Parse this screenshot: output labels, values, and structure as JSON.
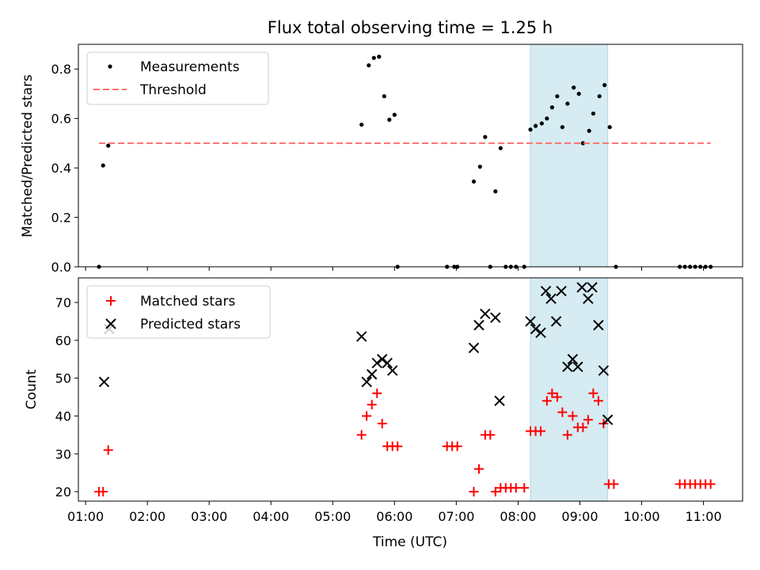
{
  "chart_data": [
    {
      "type": "scatter",
      "title": "Flux total observing time = 1.25 h",
      "ylabel": "Matched/Predicted stars",
      "xlim": [
        "00:53",
        "11:38"
      ],
      "ylim": [
        0,
        0.9
      ],
      "yticks": [
        "0.0",
        "0.2",
        "0.4",
        "0.6",
        "0.8"
      ],
      "grid": false,
      "legend": "upper-left",
      "highlight_span": {
        "start": "08:12",
        "end": "09:27",
        "color": "#add8e6"
      },
      "series": [
        {
          "name": "Measurements",
          "marker": "dot",
          "color": "#000000",
          "points": [
            [
              "01:13",
              0.0
            ],
            [
              "01:17",
              0.41
            ],
            [
              "01:22",
              0.49
            ],
            [
              "05:28",
              0.575
            ],
            [
              "05:35",
              0.815
            ],
            [
              "05:40",
              0.845
            ],
            [
              "05:45",
              0.85
            ],
            [
              "05:50",
              0.69
            ],
            [
              "05:55",
              0.595
            ],
            [
              "06:00",
              0.615
            ],
            [
              "06:03",
              0.0
            ],
            [
              "06:51",
              0.0
            ],
            [
              "06:58",
              0.0
            ],
            [
              "07:01",
              0.0
            ],
            [
              "07:17",
              0.345
            ],
            [
              "07:23",
              0.405
            ],
            [
              "07:28",
              0.525
            ],
            [
              "07:33",
              0.0
            ],
            [
              "07:38",
              0.305
            ],
            [
              "07:43",
              0.48
            ],
            [
              "07:48",
              0.0
            ],
            [
              "07:53",
              0.0
            ],
            [
              "07:58",
              0.0
            ],
            [
              "08:06",
              0.0
            ],
            [
              "08:12",
              0.555
            ],
            [
              "08:17",
              0.57
            ],
            [
              "08:23",
              0.58
            ],
            [
              "08:28",
              0.6
            ],
            [
              "08:33",
              0.645
            ],
            [
              "08:38",
              0.69
            ],
            [
              "08:43",
              0.565
            ],
            [
              "08:48",
              0.66
            ],
            [
              "08:54",
              0.725
            ],
            [
              "08:59",
              0.7
            ],
            [
              "09:03",
              0.5
            ],
            [
              "09:09",
              0.55
            ],
            [
              "09:13",
              0.62
            ],
            [
              "09:19",
              0.69
            ],
            [
              "09:24",
              0.735
            ],
            [
              "09:29",
              0.565
            ],
            [
              "09:35",
              0.0
            ],
            [
              "10:37",
              0.0
            ],
            [
              "10:42",
              0.0
            ],
            [
              "10:47",
              0.0
            ],
            [
              "10:52",
              0.0
            ],
            [
              "10:57",
              0.0
            ],
            [
              "11:02",
              0.0
            ],
            [
              "11:07",
              0.0
            ]
          ]
        },
        {
          "name": "Threshold",
          "line": "dashed",
          "color": "#ff7070",
          "x": [
            "01:13",
            "11:07"
          ],
          "y": [
            0.5,
            0.5
          ]
        }
      ]
    },
    {
      "type": "scatter",
      "xlabel": "Time (UTC)",
      "ylabel": "Count",
      "xlim": [
        "00:53",
        "11:38"
      ],
      "ylim": [
        17.5,
        76.5
      ],
      "xticks": [
        "01:00",
        "02:00",
        "03:00",
        "04:00",
        "05:00",
        "06:00",
        "07:00",
        "08:00",
        "09:00",
        "10:00",
        "11:00"
      ],
      "yticks": [
        "20",
        "30",
        "40",
        "50",
        "60",
        "70"
      ],
      "grid": false,
      "legend": "upper-left",
      "highlight_span": {
        "start": "08:12",
        "end": "09:27",
        "color": "#add8e6"
      },
      "series": [
        {
          "name": "Matched stars",
          "marker": "plus",
          "color": "#ff0000",
          "points": [
            [
              "01:13",
              20
            ],
            [
              "01:17",
              20
            ],
            [
              "01:22",
              31
            ],
            [
              "05:28",
              35
            ],
            [
              "05:33",
              40
            ],
            [
              "05:38",
              43
            ],
            [
              "05:43",
              46
            ],
            [
              "05:48",
              38
            ],
            [
              "05:53",
              32
            ],
            [
              "05:58",
              32
            ],
            [
              "06:03",
              32
            ],
            [
              "06:51",
              32
            ],
            [
              "06:56",
              32
            ],
            [
              "07:01",
              32
            ],
            [
              "07:17",
              20
            ],
            [
              "07:22",
              26
            ],
            [
              "07:28",
              35
            ],
            [
              "07:33",
              35
            ],
            [
              "07:38",
              20
            ],
            [
              "07:43",
              21
            ],
            [
              "07:48",
              21
            ],
            [
              "07:53",
              21
            ],
            [
              "07:58",
              21
            ],
            [
              "08:06",
              21
            ],
            [
              "08:12",
              36
            ],
            [
              "08:17",
              36
            ],
            [
              "08:22",
              36
            ],
            [
              "08:28",
              44
            ],
            [
              "08:33",
              46
            ],
            [
              "08:38",
              45
            ],
            [
              "08:43",
              41
            ],
            [
              "08:48",
              35
            ],
            [
              "08:53",
              40
            ],
            [
              "08:58",
              37
            ],
            [
              "09:03",
              37
            ],
            [
              "09:08",
              39
            ],
            [
              "09:13",
              46
            ],
            [
              "09:18",
              44
            ],
            [
              "09:23",
              38
            ],
            [
              "09:28",
              22
            ],
            [
              "09:33",
              22
            ],
            [
              "10:37",
              22
            ],
            [
              "10:42",
              22
            ],
            [
              "10:47",
              22
            ],
            [
              "10:52",
              22
            ],
            [
              "10:57",
              22
            ],
            [
              "11:02",
              22
            ],
            [
              "11:07",
              22
            ]
          ]
        },
        {
          "name": "Predicted stars",
          "marker": "x",
          "color": "#000000",
          "points": [
            [
              "01:18",
              49
            ],
            [
              "01:23",
              63
            ],
            [
              "05:28",
              61
            ],
            [
              "05:33",
              49
            ],
            [
              "05:38",
              51
            ],
            [
              "05:43",
              54
            ],
            [
              "05:48",
              55
            ],
            [
              "05:53",
              54
            ],
            [
              "05:58",
              52
            ],
            [
              "07:17",
              58
            ],
            [
              "07:22",
              64
            ],
            [
              "07:28",
              67
            ],
            [
              "07:38",
              66
            ],
            [
              "07:42",
              44
            ],
            [
              "08:12",
              65
            ],
            [
              "08:17",
              63
            ],
            [
              "08:22",
              62
            ],
            [
              "08:27",
              73
            ],
            [
              "08:32",
              71
            ],
            [
              "08:37",
              65
            ],
            [
              "08:42",
              73
            ],
            [
              "08:48",
              53
            ],
            [
              "08:53",
              55
            ],
            [
              "08:58",
              53
            ],
            [
              "09:02",
              74
            ],
            [
              "09:08",
              71
            ],
            [
              "09:12",
              74
            ],
            [
              "09:18",
              64
            ],
            [
              "09:23",
              52
            ],
            [
              "09:27",
              39
            ]
          ]
        }
      ]
    }
  ]
}
